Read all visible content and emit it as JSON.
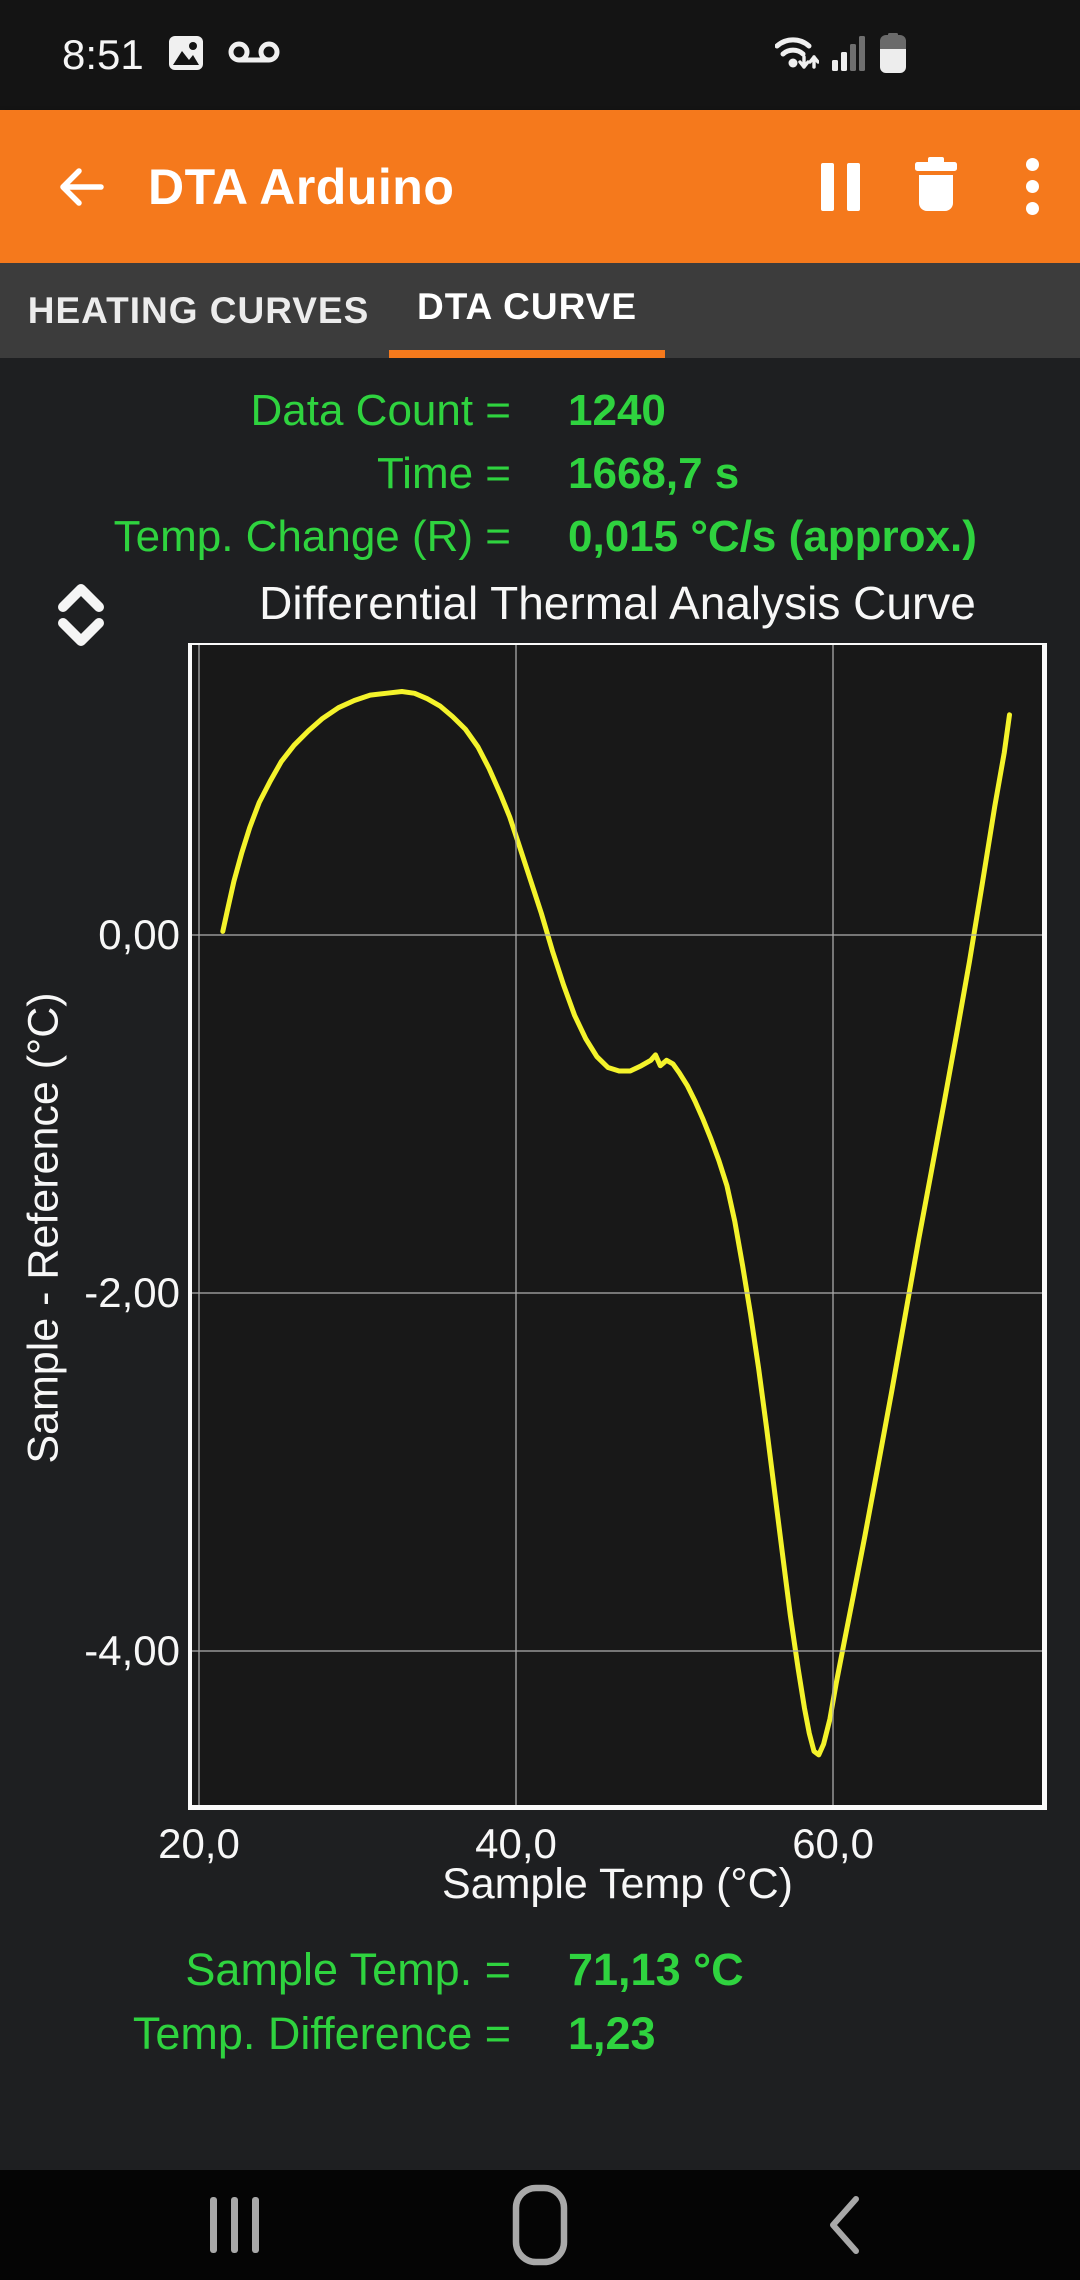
{
  "colors": {
    "accent_orange": "#F5791C",
    "stat_green": "#2FD33F",
    "curve_yellow": "#F4F32B"
  },
  "status_bar": {
    "time": "8:51",
    "left_icons": [
      "image-icon",
      "voicemail-icon"
    ],
    "right_icons": [
      "wifi-data-icon",
      "signal-strength-icon",
      "battery-icon"
    ]
  },
  "app_bar": {
    "title": "DTA Arduino",
    "actions": [
      "pause",
      "delete",
      "overflow-menu"
    ]
  },
  "tabs": [
    {
      "label": "HEATING CURVES",
      "active": false
    },
    {
      "label": "DTA CURVE",
      "active": true
    }
  ],
  "stats_top": [
    {
      "label": "Data Count =",
      "value": "1240"
    },
    {
      "label": "Time =",
      "value": "1668,7 s"
    },
    {
      "label": "Temp. Change (R) =",
      "value": "0,015 °C/s (approx.)"
    }
  ],
  "stats_bottom": [
    {
      "label": "Sample Temp. =",
      "value": "71,13 °C"
    },
    {
      "label": "Temp. Difference =",
      "value": "1,23"
    }
  ],
  "chart_data": {
    "type": "line",
    "title": "Differential Thermal Analysis Curve",
    "xlabel": "Sample Temp (°C)",
    "ylabel": "Sample - Reference (°C)",
    "xlim": [
      19.56,
      73.18
    ],
    "ylim": [
      -4.86,
      1.62
    ],
    "grid": true,
    "legend": "none",
    "x_ticks": [
      {
        "value": 20,
        "label": "20,0"
      },
      {
        "value": 40,
        "label": "40,0"
      },
      {
        "value": 60,
        "label": "60,0"
      }
    ],
    "y_ticks": [
      {
        "value": 0,
        "label": "0,00"
      },
      {
        "value": -2,
        "label": "-2,00"
      },
      {
        "value": -4,
        "label": "-4,00"
      }
    ],
    "series": [
      {
        "name": "DTA curve",
        "color": "#F4F32B",
        "points": [
          [
            21.5,
            0.02
          ],
          [
            21.8,
            0.14
          ],
          [
            22.2,
            0.3
          ],
          [
            22.7,
            0.46
          ],
          [
            23.2,
            0.6
          ],
          [
            23.8,
            0.74
          ],
          [
            24.5,
            0.86
          ],
          [
            25.2,
            0.97
          ],
          [
            26.0,
            1.06
          ],
          [
            26.9,
            1.14
          ],
          [
            27.8,
            1.21
          ],
          [
            28.8,
            1.27
          ],
          [
            29.8,
            1.31
          ],
          [
            30.8,
            1.34
          ],
          [
            31.8,
            1.35
          ],
          [
            32.8,
            1.36
          ],
          [
            33.6,
            1.35
          ],
          [
            34.4,
            1.32
          ],
          [
            35.2,
            1.28
          ],
          [
            36.0,
            1.22
          ],
          [
            36.8,
            1.15
          ],
          [
            37.6,
            1.05
          ],
          [
            38.3,
            0.93
          ],
          [
            39.0,
            0.79
          ],
          [
            39.6,
            0.66
          ],
          [
            40.2,
            0.5
          ],
          [
            40.9,
            0.31
          ],
          [
            41.6,
            0.12
          ],
          [
            42.3,
            -0.09
          ],
          [
            43.0,
            -0.28
          ],
          [
            43.7,
            -0.45
          ],
          [
            44.4,
            -0.58
          ],
          [
            45.1,
            -0.68
          ],
          [
            45.8,
            -0.74
          ],
          [
            46.5,
            -0.76
          ],
          [
            47.2,
            -0.76
          ],
          [
            47.9,
            -0.73
          ],
          [
            48.5,
            -0.7
          ],
          [
            48.8,
            -0.67
          ],
          [
            49.1,
            -0.73
          ],
          [
            49.5,
            -0.7
          ],
          [
            49.9,
            -0.72
          ],
          [
            50.3,
            -0.77
          ],
          [
            50.8,
            -0.84
          ],
          [
            51.3,
            -0.93
          ],
          [
            51.8,
            -1.03
          ],
          [
            52.3,
            -1.14
          ],
          [
            52.8,
            -1.26
          ],
          [
            53.3,
            -1.4
          ],
          [
            53.8,
            -1.6
          ],
          [
            54.3,
            -1.85
          ],
          [
            54.8,
            -2.12
          ],
          [
            55.3,
            -2.42
          ],
          [
            55.8,
            -2.75
          ],
          [
            56.3,
            -3.1
          ],
          [
            56.8,
            -3.45
          ],
          [
            57.3,
            -3.8
          ],
          [
            57.8,
            -4.1
          ],
          [
            58.2,
            -4.32
          ],
          [
            58.5,
            -4.46
          ],
          [
            58.8,
            -4.56
          ],
          [
            59.1,
            -4.58
          ],
          [
            59.4,
            -4.52
          ],
          [
            59.8,
            -4.38
          ],
          [
            60.2,
            -4.18
          ],
          [
            60.7,
            -3.95
          ],
          [
            61.3,
            -3.68
          ],
          [
            62.0,
            -3.36
          ],
          [
            62.8,
            -2.98
          ],
          [
            63.7,
            -2.55
          ],
          [
            64.6,
            -2.1
          ],
          [
            65.4,
            -1.7
          ],
          [
            66.2,
            -1.32
          ],
          [
            67.0,
            -0.94
          ],
          [
            67.8,
            -0.55
          ],
          [
            68.6,
            -0.15
          ],
          [
            69.4,
            0.28
          ],
          [
            70.2,
            0.72
          ],
          [
            70.8,
            1.02
          ],
          [
            71.13,
            1.23
          ]
        ]
      }
    ]
  },
  "nav_bar": {
    "buttons": [
      "recents",
      "home",
      "back"
    ]
  }
}
